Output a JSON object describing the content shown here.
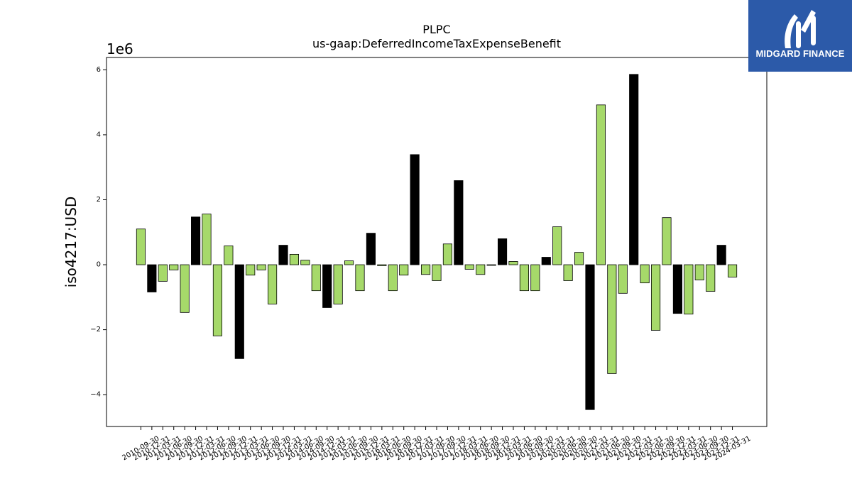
{
  "logo": {
    "text": "MIDGARD FINANCE",
    "background": "#2c5aa9",
    "icon": "midgard-logo-icon"
  },
  "chart_data": {
    "type": "bar",
    "title": "PLPC",
    "subtitle": "us-gaap:DeferredIncomeTaxExpenseBenefit",
    "xlabel": "",
    "ylabel": "iso4217:USD",
    "y_offset_text": "1e6",
    "grid": false,
    "ylim": [
      -4980000,
      6380000
    ],
    "yticks": [
      -4000000,
      -2000000,
      0,
      2000000,
      4000000,
      6000000
    ],
    "ytick_labels": [
      "−4",
      "−2",
      "0",
      "2",
      "4",
      "6"
    ],
    "categories": [
      "2010-09-30",
      "2010-12-31",
      "2011-03-31",
      "2011-06-30",
      "2011-09-30",
      "2011-12-31",
      "2012-03-31",
      "2012-06-30",
      "2012-09-30",
      "2012-12-31",
      "2013-03-31",
      "2013-06-30",
      "2013-09-30",
      "2013-12-31",
      "2014-03-31",
      "2014-06-30",
      "2014-09-30",
      "2014-12-31",
      "2015-03-31",
      "2015-06-30",
      "2015-09-30",
      "2015-12-31",
      "2016-03-31",
      "2016-06-30",
      "2016-09-30",
      "2016-12-31",
      "2017-03-31",
      "2017-06-30",
      "2017-09-30",
      "2017-12-31",
      "2018-03-31",
      "2018-06-30",
      "2018-09-30",
      "2018-12-31",
      "2019-03-31",
      "2019-06-30",
      "2019-09-30",
      "2019-12-31",
      "2020-03-31",
      "2020-06-30",
      "2020-09-30",
      "2020-12-31",
      "2021-03-31",
      "2021-06-30",
      "2021-09-30",
      "2021-12-31",
      "2022-03-31",
      "2022-06-30",
      "2022-09-30",
      "2022-12-31",
      "2023-03-31",
      "2023-06-30",
      "2023-09-30",
      "2023-12-31",
      "2024-03-31"
    ],
    "values": [
      1100000,
      -840000,
      -510000,
      -160000,
      -1470000,
      1470000,
      1560000,
      -2190000,
      580000,
      -2890000,
      -320000,
      -160000,
      -1210000,
      600000,
      320000,
      140000,
      -800000,
      -1320000,
      -1210000,
      120000,
      -800000,
      970000,
      -30000,
      -800000,
      -320000,
      3390000,
      -300000,
      -490000,
      640000,
      2590000,
      -140000,
      -300000,
      -20000,
      800000,
      100000,
      -800000,
      -800000,
      230000,
      1170000,
      -490000,
      380000,
      -4460000,
      4920000,
      -3350000,
      -880000,
      5860000,
      -560000,
      -2020000,
      1450000,
      -1500000,
      -1520000,
      -470000,
      -820000,
      600000,
      -380000
    ],
    "bar_colors": [
      "#a6d96a",
      "#000000",
      "#a6d96a",
      "#a6d96a",
      "#a6d96a",
      "#000000",
      "#a6d96a",
      "#a6d96a",
      "#a6d96a",
      "#000000",
      "#a6d96a",
      "#a6d96a",
      "#a6d96a",
      "#000000",
      "#a6d96a",
      "#a6d96a",
      "#a6d96a",
      "#000000",
      "#a6d96a",
      "#a6d96a",
      "#a6d96a",
      "#000000",
      "#a6d96a",
      "#a6d96a",
      "#a6d96a",
      "#000000",
      "#a6d96a",
      "#a6d96a",
      "#a6d96a",
      "#000000",
      "#a6d96a",
      "#a6d96a",
      "#a6d96a",
      "#000000",
      "#a6d96a",
      "#a6d96a",
      "#a6d96a",
      "#000000",
      "#a6d96a",
      "#a6d96a",
      "#a6d96a",
      "#000000",
      "#a6d96a",
      "#a6d96a",
      "#a6d96a",
      "#000000",
      "#a6d96a",
      "#a6d96a",
      "#a6d96a",
      "#000000",
      "#a6d96a",
      "#a6d96a",
      "#a6d96a",
      "#000000",
      "#a6d96a"
    ]
  }
}
